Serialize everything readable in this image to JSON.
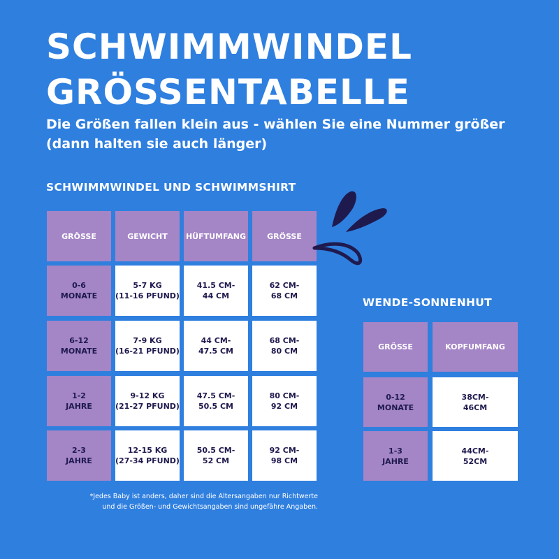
{
  "title_line1": "SCHWIMMWINDEL",
  "title_line2": "GRÖSSENTABELLE",
  "subtitle": "Die Größen fallen klein aus - wählen Sie eine Nummer größer (dann halten sie auch länger)",
  "colors": {
    "background": "#2f7fdf",
    "purple": "#a485c6",
    "dark_text": "#1f1a4e",
    "white": "#ffffff"
  },
  "decoration": "splash-drops-icon",
  "table1": {
    "heading": "SCHWIMMWINDEL UND SCHWIMMSHIRT",
    "columns": [
      "GRÖSSE",
      "GEWICHT",
      "HÜFTUMFANG",
      "GRÖSSE"
    ],
    "rows": [
      [
        "0-6\nMONATE",
        "5-7 KG\n(11-16 PFUND)",
        "41.5 CM-\n44 CM",
        "62 CM-\n68 CM"
      ],
      [
        "6-12\nMONATE",
        "7-9 KG\n(16-21 PFUND)",
        "44 CM-\n47.5 CM",
        "68 CM-\n80 CM"
      ],
      [
        "1-2\nJAHRE",
        "9-12 KG\n(21-27 PFUND)",
        "47.5 CM-\n50.5 CM",
        "80 CM-\n92 CM"
      ],
      [
        "2-3\nJAHRE",
        "12-15 KG\n(27-34 PFUND)",
        "50.5 CM-\n52 CM",
        "92 CM-\n98 CM"
      ]
    ]
  },
  "table2": {
    "heading": "WENDE-SONNENHUT",
    "columns": [
      "GRÖSSE",
      "KOPFUMFANG"
    ],
    "rows": [
      [
        "0-12\nMONATE",
        "38CM-\n46CM"
      ],
      [
        "1-3\nJAHRE",
        "44CM-\n52CM"
      ]
    ]
  },
  "footnote": "*Jedes Baby ist anders, daher sind die Altersangaben nur Richtwerte\nund die Größen- und Gewichtsangaben sind ungefähre Angaben."
}
